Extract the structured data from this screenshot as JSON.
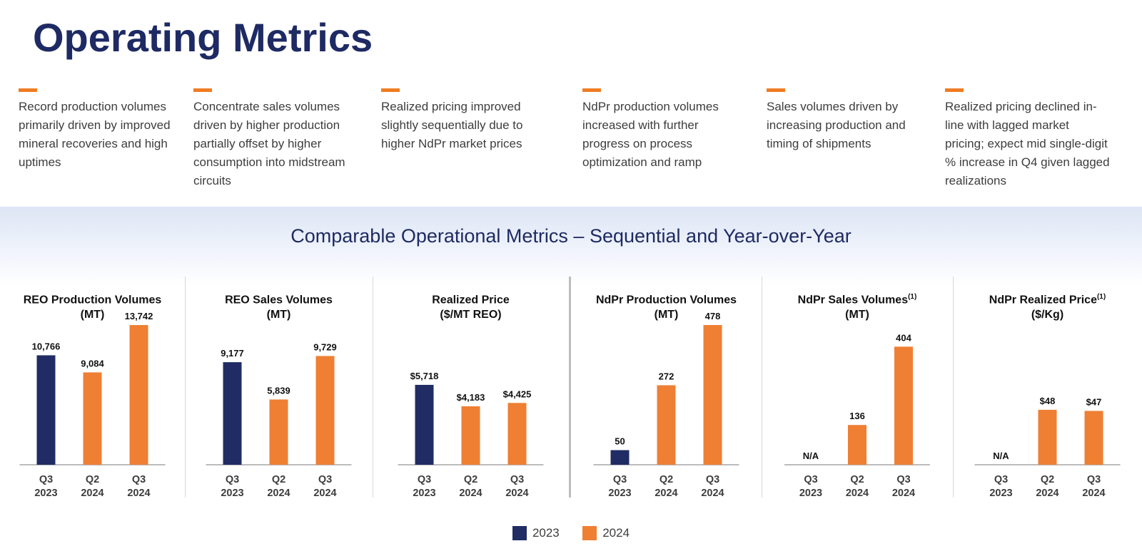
{
  "page": {
    "title": "Operating Metrics"
  },
  "bullets": [
    {
      "text": "Record production volumes primarily driven by improved mineral recoveries and high uptimes"
    },
    {
      "text": "Concentrate sales volumes driven by higher production partially offset by higher consumption into midstream circuits"
    },
    {
      "text": "Realized pricing improved slightly sequentially due to higher NdPr market prices"
    },
    {
      "text": "NdPr production volumes increased with further progress on process optimization and ramp"
    },
    {
      "text": "Sales volumes driven by increasing production and timing of shipments"
    },
    {
      "text": "Realized pricing declined in-line with lagged market pricing; expect mid single-digit % increase in Q4 given lagged realizations"
    }
  ],
  "section": {
    "title": "Comparable Operational Metrics – Sequential and Year-over-Year"
  },
  "colors": {
    "year_2023": "#202c63",
    "year_2024": "#ef7f33",
    "title": "#1e2a63",
    "accent": "#f07d23"
  },
  "legend": {
    "year_2023": "2023",
    "year_2024": "2024"
  },
  "chart_data": [
    {
      "type": "bar",
      "title_line1": "REO Production Volumes",
      "title_line2": "(MT)",
      "footnote": "",
      "categories": [
        [
          "Q3",
          "2023"
        ],
        [
          "Q2",
          "2024"
        ],
        [
          "Q3",
          "2024"
        ]
      ],
      "values": [
        10766,
        9084,
        13742
      ],
      "labels": [
        "10,766",
        "9,084",
        "13,742"
      ],
      "years": [
        "2023",
        "2024",
        "2024"
      ],
      "ylim": [
        0,
        13742
      ]
    },
    {
      "type": "bar",
      "title_line1": "REO Sales Volumes",
      "title_line2": "(MT)",
      "footnote": "",
      "categories": [
        [
          "Q3",
          "2023"
        ],
        [
          "Q2",
          "2024"
        ],
        [
          "Q3",
          "2024"
        ]
      ],
      "values": [
        9177,
        5839,
        9729
      ],
      "labels": [
        "9,177",
        "5,839",
        "9,729"
      ],
      "years": [
        "2023",
        "2024",
        "2024"
      ],
      "ylim": [
        0,
        12500
      ]
    },
    {
      "type": "bar",
      "title_line1": "Realized Price",
      "title_line2": "($/MT REO)",
      "footnote": "",
      "categories": [
        [
          "Q3",
          "2023"
        ],
        [
          "Q2",
          "2024"
        ],
        [
          "Q3",
          "2024"
        ]
      ],
      "values": [
        5718,
        4183,
        4425
      ],
      "labels": [
        "$5,718",
        "$4,183",
        "$4,425"
      ],
      "years": [
        "2023",
        "2024",
        "2024"
      ],
      "ylim": [
        0,
        10000
      ]
    },
    {
      "type": "bar",
      "title_line1": "NdPr Production Volumes",
      "title_line2": "(MT)",
      "footnote": "",
      "categories": [
        [
          "Q3",
          "2023"
        ],
        [
          "Q2",
          "2024"
        ],
        [
          "Q3",
          "2024"
        ]
      ],
      "values": [
        50,
        272,
        478
      ],
      "labels": [
        "50",
        "272",
        "478"
      ],
      "years": [
        "2023",
        "2024",
        "2024"
      ],
      "ylim": [
        0,
        478
      ]
    },
    {
      "type": "bar",
      "title_line1": "NdPr Sales Volumes",
      "title_line2": "(MT)",
      "footnote": "(1)",
      "categories": [
        [
          "Q3",
          "2023"
        ],
        [
          "Q2",
          "2024"
        ],
        [
          "Q3",
          "2024"
        ]
      ],
      "values": [
        null,
        136,
        404
      ],
      "labels": [
        "N/A",
        "136",
        "404"
      ],
      "years": [
        "2023",
        "2024",
        "2024"
      ],
      "ylim": [
        0,
        478
      ]
    },
    {
      "type": "bar",
      "title_line1": "NdPr Realized Price",
      "title_line2": "($/Kg)",
      "footnote": "(1)",
      "categories": [
        [
          "Q3",
          "2023"
        ],
        [
          "Q2",
          "2024"
        ],
        [
          "Q3",
          "2024"
        ]
      ],
      "values": [
        null,
        48,
        47
      ],
      "labels": [
        "N/A",
        "$48",
        "$47"
      ],
      "years": [
        "2023",
        "2024",
        "2024"
      ],
      "ylim": [
        0,
        122
      ]
    }
  ]
}
